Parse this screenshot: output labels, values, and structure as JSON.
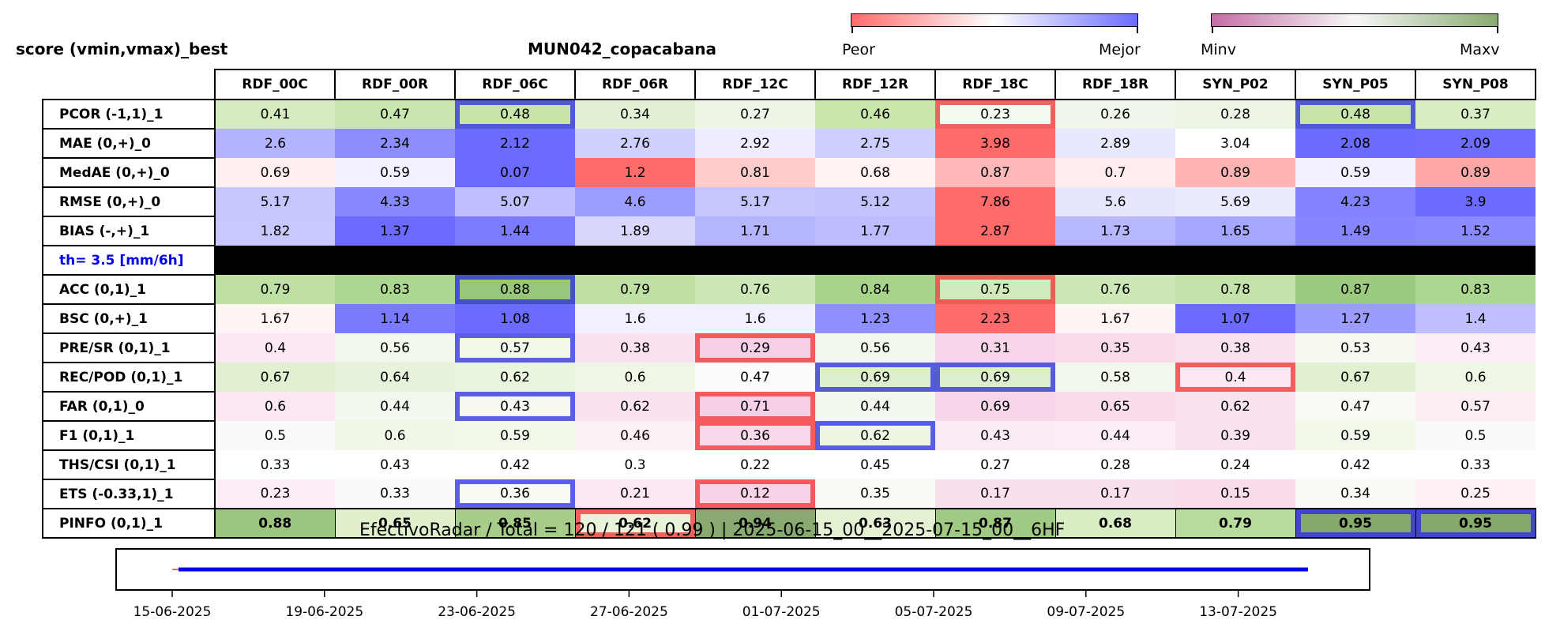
{
  "header": {
    "title_left": "score (vmin,vmax)_best",
    "title_center": "MUN042_copacabana"
  },
  "colorbars": {
    "diverging": {
      "left_label": "Peor",
      "right_label": "Mejor",
      "colors": [
        "#ff6b6b",
        "#ffffff",
        "#6b6bff"
      ]
    },
    "sequential": {
      "left_label": "Minv",
      "right_label": "Maxv",
      "colors": [
        "#c46ea6",
        "#f7f7f7",
        "#88aa70"
      ]
    }
  },
  "chart_data": {
    "type": "heatmap",
    "columns": [
      "RDF_00C",
      "RDF_00R",
      "RDF_06C",
      "RDF_06R",
      "RDF_12C",
      "RDF_12R",
      "RDF_18C",
      "RDF_18R",
      "SYN_P02",
      "SYN_P05",
      "SYN_P08"
    ],
    "rows": [
      {
        "label": "PCOR (-1,1)_1",
        "values": [
          "0.41",
          "0.47",
          "0.48",
          "0.34",
          "0.27",
          "0.46",
          "0.23",
          "0.26",
          "0.28",
          "0.48",
          "0.37"
        ],
        "colors": [
          "#d5ebbd",
          "#cae6af",
          "#c8e5ab",
          "#e2f1d4",
          "#edf6e6",
          "#c9e6ad",
          "#f3f9ef",
          "#eff7ea",
          "#ecf5e4",
          "#c8e5ab",
          "#d9edc5"
        ],
        "best": [
          2,
          9
        ],
        "worst": [
          6
        ]
      },
      {
        "label": "MAE (0,+)_0",
        "values": [
          "2.6",
          "2.34",
          "2.12",
          "2.76",
          "2.92",
          "2.75",
          "3.98",
          "2.89",
          "3.04",
          "2.08",
          "2.09"
        ],
        "colors": [
          "#b3b3ff",
          "#8d8dff",
          "#6b6bff",
          "#d0d0ff",
          "#ededff",
          "#cfcfff",
          "#ff6b6b",
          "#e8e8ff",
          "#ffffff",
          "#6b6bff",
          "#6d6dff"
        ],
        "best": [],
        "worst": []
      },
      {
        "label": "MedAE (0,+)_0",
        "values": [
          "0.69",
          "0.59",
          "0.07",
          "1.2",
          "0.81",
          "0.68",
          "0.87",
          "0.7",
          "0.89",
          "0.59",
          "0.89"
        ],
        "colors": [
          "#ffefef",
          "#f1f1ff",
          "#6b6bff",
          "#ff6b6b",
          "#ffcccc",
          "#fff2f2",
          "#ffb8b8",
          "#ffecec",
          "#ffb3b3",
          "#f1f1ff",
          "#ffa6a6"
        ],
        "best": [],
        "worst": []
      },
      {
        "label": "RMSE (0,+)_0",
        "values": [
          "5.17",
          "4.33",
          "5.07",
          "4.6",
          "5.17",
          "5.12",
          "7.86",
          "5.6",
          "5.69",
          "4.23",
          "3.9"
        ],
        "colors": [
          "#c6c6ff",
          "#8989ff",
          "#c0c0ff",
          "#9d9dff",
          "#c6c6ff",
          "#c3c3ff",
          "#ff6b6b",
          "#e6e6ff",
          "#ebebff",
          "#8282ff",
          "#6b6bff"
        ],
        "best": [],
        "worst": []
      },
      {
        "label": "BIAS (-,+)_1",
        "values": [
          "1.82",
          "1.37",
          "1.44",
          "1.89",
          "1.71",
          "1.77",
          "2.87",
          "1.73",
          "1.65",
          "1.49",
          "1.52"
        ],
        "colors": [
          "#c8c8ff",
          "#6b6bff",
          "#7b7bff",
          "#d8d8ff",
          "#b4b4ff",
          "#bdbdff",
          "#ff6b6b",
          "#b7b7ff",
          "#a6a6ff",
          "#8686ff",
          "#8b8bff"
        ],
        "best": [],
        "worst": []
      },
      {
        "separator": true,
        "label": "th= 3.5 [mm/6h]"
      },
      {
        "label": "ACC (0,1)_1",
        "values": [
          "0.79",
          "0.83",
          "0.88",
          "0.79",
          "0.76",
          "0.84",
          "0.75",
          "0.76",
          "0.78",
          "0.87",
          "0.83"
        ],
        "colors": [
          "#bfe0a5",
          "#add690",
          "#98c77c",
          "#bfe0a5",
          "#cde7b6",
          "#a8d38b",
          "#d1e9bb",
          "#cde7b6",
          "#c4e3ab",
          "#9ccb80",
          "#add690"
        ],
        "best": [
          2
        ],
        "worst": [
          6
        ]
      },
      {
        "label": "BSC (0,+)_1",
        "values": [
          "1.67",
          "1.14",
          "1.08",
          "1.6",
          "1.6",
          "1.23",
          "2.23",
          "1.67",
          "1.07",
          "1.27",
          "1.4"
        ],
        "colors": [
          "#fff5f5",
          "#7a7aff",
          "#6b6bff",
          "#f0f0ff",
          "#f0f0ff",
          "#8f8fff",
          "#ff6b6b",
          "#fff5f5",
          "#6b6bff",
          "#9c9cff",
          "#c0c0ff"
        ],
        "best": [],
        "worst": []
      },
      {
        "label": "PRE/SR (0,1)_1",
        "values": [
          "0.4",
          "0.56",
          "0.57",
          "0.38",
          "0.29",
          "0.56",
          "0.31",
          "0.35",
          "0.38",
          "0.53",
          "0.43"
        ],
        "colors": [
          "#fbe8f3",
          "#f2f8ec",
          "#f1f8ea",
          "#fbe2f0",
          "#f7cfe6",
          "#f2f8ec",
          "#f8d6ea",
          "#f9dcec",
          "#fbe2f0",
          "#f5f9f0",
          "#fbedf5"
        ],
        "best": [
          2
        ],
        "worst": [
          4
        ]
      },
      {
        "label": "REC/POD (0,1)_1",
        "values": [
          "0.67",
          "0.64",
          "0.62",
          "0.6",
          "0.47",
          "0.69",
          "0.69",
          "0.58",
          "0.4",
          "0.67",
          "0.6"
        ],
        "colors": [
          "#e0f0d1",
          "#e6f3da",
          "#eaf5e0",
          "#eef7e6",
          "#fbfbfb",
          "#dceecc",
          "#dceecc",
          "#f2f8ec",
          "#fbe8f3",
          "#e0f0d1",
          "#eef7e6"
        ],
        "best": [
          5,
          6
        ],
        "worst": [
          8
        ]
      },
      {
        "label": "FAR (0,1)_0",
        "values": [
          "0.6",
          "0.44",
          "0.43",
          "0.62",
          "0.71",
          "0.44",
          "0.69",
          "0.65",
          "0.62",
          "0.47",
          "0.57"
        ],
        "colors": [
          "#fbe7f2",
          "#f3f8ee",
          "#f5f9f0",
          "#fbe2f0",
          "#f7d0e7",
          "#f3f8ee",
          "#f8d6ea",
          "#fadcec",
          "#fbe2f0",
          "#f8fbf5",
          "#fcedf5"
        ],
        "best": [
          2
        ],
        "worst": [
          4
        ]
      },
      {
        "label": "F1 (0,1)_1",
        "values": [
          "0.5",
          "0.6",
          "0.59",
          "0.46",
          "0.36",
          "0.62",
          "0.43",
          "0.44",
          "0.39",
          "0.59",
          "0.5"
        ],
        "colors": [
          "#fafafa",
          "#eff7e7",
          "#f1f8ea",
          "#fcf0f7",
          "#f8d9eb",
          "#ecf6e3",
          "#fbebf4",
          "#fbedf5",
          "#fae1ef",
          "#f1f8ea",
          "#fafafa"
        ],
        "best": [
          5
        ],
        "worst": [
          4
        ]
      },
      {
        "label": "THS/CSI (0,1)_1",
        "values": [
          "0.33",
          "0.43",
          "0.42",
          "0.3",
          "0.22",
          "0.45",
          "0.27",
          "0.28",
          "0.24",
          "0.42",
          "0.33"
        ],
        "colors": [
          "#ffffff",
          "#ffffff",
          "#ffffff",
          "#ffffff",
          "#ffffff",
          "#ffffff",
          "#ffffff",
          "#ffffff",
          "#ffffff",
          "#ffffff",
          "#ffffff"
        ],
        "best": [],
        "worst": []
      },
      {
        "label": "ETS (-0.33,1)_1",
        "values": [
          "0.23",
          "0.33",
          "0.36",
          "0.21",
          "0.12",
          "0.35",
          "0.17",
          "0.17",
          "0.15",
          "0.34",
          "0.25"
        ],
        "colors": [
          "#fcecf5",
          "#fafafa",
          "#f7fbf2",
          "#fbe6f1",
          "#f7d3e8",
          "#f8fbf4",
          "#fae0ee",
          "#fae0ee",
          "#f9dbec",
          "#f9fbf7",
          "#fdf0f7"
        ],
        "best": [
          2
        ],
        "worst": [
          4
        ]
      },
      {
        "label": "PINFO (0,1)_1",
        "values": [
          "0.88",
          "0.65",
          "0.85",
          "0.62",
          "0.94",
          "0.63",
          "0.87",
          "0.68",
          "0.79",
          "0.95",
          "0.95"
        ],
        "colors": [
          "#9cc67f",
          "#e0f0cd",
          "#a6cd89",
          "#e8f4d9",
          "#88aa70",
          "#e4f2d3",
          "#a0c984",
          "#d9edc4",
          "#b8dc9d",
          "#86a96e",
          "#86a96e"
        ],
        "best": [
          9,
          10
        ],
        "worst": [
          3
        ]
      }
    ],
    "summary": "EfectivoRadar / Total  =  120 / 121 ( 0.99 ) | 2025-06-15_00__2025-07-15_00__6HF",
    "timeline": {
      "xlabels": [
        "15-06-2025",
        "19-06-2025",
        "23-06-2025",
        "27-06-2025",
        "01-07-2025",
        "05-07-2025",
        "09-07-2025",
        "13-07-2025"
      ],
      "line_start_day": 0,
      "line_end_day": 30,
      "color": "#0000ee"
    }
  }
}
